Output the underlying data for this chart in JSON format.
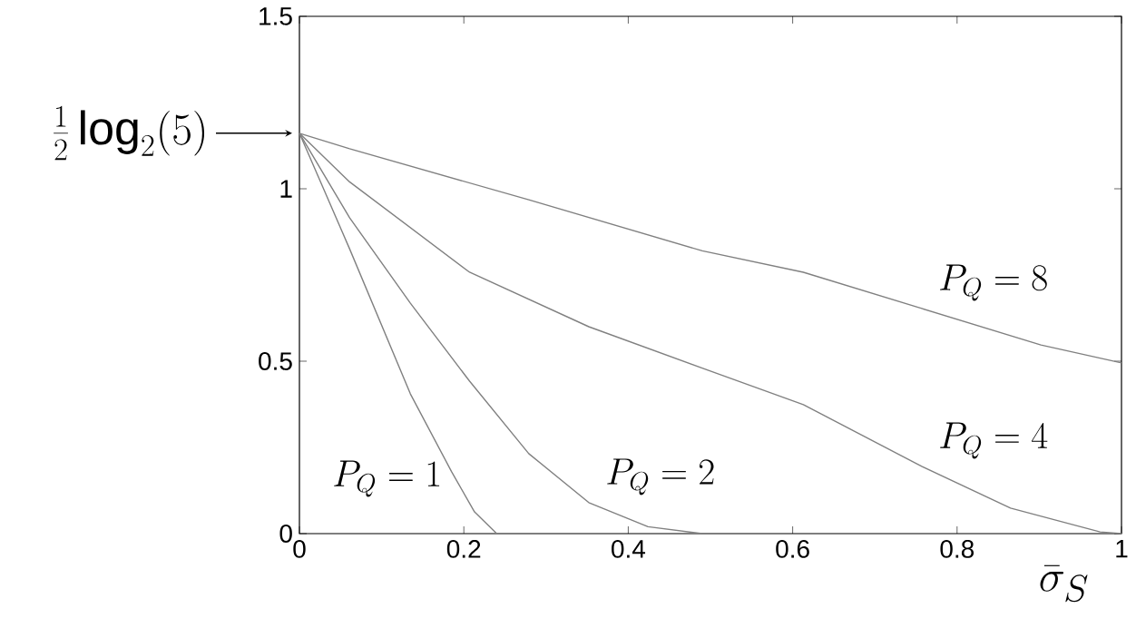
{
  "chart_data": {
    "type": "line",
    "xlabel": "\\bar{\\sigma}_S",
    "xlim": [
      0,
      1
    ],
    "ylim": [
      0,
      1.5
    ],
    "xticks": [
      0,
      0.2,
      0.4,
      0.6,
      0.8,
      1
    ],
    "yticks": [
      0,
      0.5,
      1,
      1.5
    ],
    "annotations": [
      {
        "text": "\\frac{1}{2}\\log_2(5)",
        "x": 0,
        "y": 1.161
      }
    ],
    "series": [
      {
        "name": "P_Q = 1",
        "color": "#808080",
        "x": [
          0,
          0.061,
          0.135,
          0.185,
          0.213,
          0.24
        ],
        "values": [
          1.161,
          0.826,
          0.405,
          0.18,
          0.063,
          0
        ]
      },
      {
        "name": "P_Q = 2",
        "color": "#808080",
        "x": [
          0,
          0.061,
          0.135,
          0.207,
          0.279,
          0.352,
          0.424,
          0.49
        ],
        "values": [
          1.161,
          0.916,
          0.668,
          0.442,
          0.232,
          0.09,
          0.02,
          0
        ]
      },
      {
        "name": "P_Q = 4",
        "color": "#808080",
        "x": [
          0,
          0.061,
          0.207,
          0.352,
          0.49,
          0.613,
          0.757,
          0.865,
          0.974,
          1
        ],
        "values": [
          1.161,
          1.02,
          0.758,
          0.6,
          0.48,
          0.374,
          0.195,
          0.074,
          0.005,
          0
        ]
      },
      {
        "name": "P_Q = 8",
        "color": "#808080",
        "x": [
          0,
          0.061,
          0.279,
          0.49,
          0.613,
          0.757,
          0.902,
          1
        ],
        "values": [
          1.161,
          1.116,
          0.968,
          0.82,
          0.758,
          0.653,
          0.547,
          0.495
        ]
      }
    ]
  }
}
